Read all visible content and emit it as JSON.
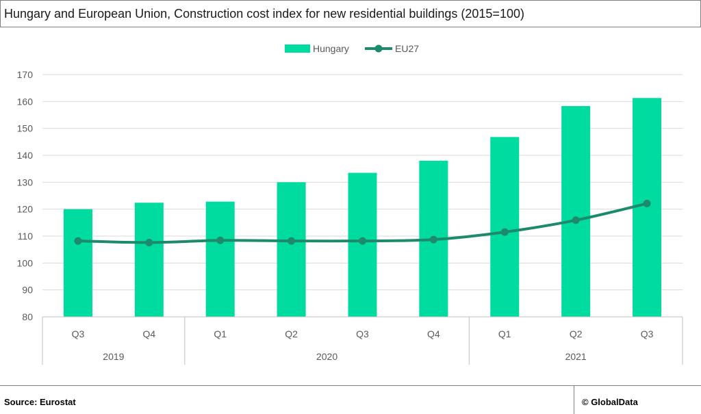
{
  "title": "Hungary and European Union, Construction cost index for new residential buildings (2015=100)",
  "footer": {
    "source": "Source: Eurostat",
    "credit": "© GlobalData"
  },
  "colors": {
    "hungary": "#00dca0",
    "eu27": "#1d8a6b",
    "grid": "#d9d9d9",
    "axis": "#bfbfbf",
    "text": "#595959"
  },
  "chart_data": {
    "type": "bar",
    "title": "",
    "xlabel": "",
    "ylabel": "",
    "ylim": [
      80,
      170
    ],
    "yticks": [
      80,
      90,
      100,
      110,
      120,
      130,
      140,
      150,
      160,
      170
    ],
    "grid": true,
    "legend": "top-center",
    "categories": [
      "Q3",
      "Q4",
      "Q1",
      "Q2",
      "Q3",
      "Q4",
      "Q1",
      "Q2",
      "Q3"
    ],
    "groups": [
      {
        "label": "2019",
        "count": 2
      },
      {
        "label": "2020",
        "count": 4
      },
      {
        "label": "2021",
        "count": 3
      }
    ],
    "series": [
      {
        "name": "Hungary",
        "type": "bar",
        "values": [
          120.0,
          122.4,
          122.8,
          130.0,
          133.5,
          138.0,
          146.8,
          158.3,
          161.3
        ]
      },
      {
        "name": "EU27",
        "type": "line",
        "values": [
          108.2,
          107.6,
          108.4,
          108.2,
          108.2,
          108.7,
          111.5,
          115.9,
          122.1
        ]
      }
    ]
  }
}
